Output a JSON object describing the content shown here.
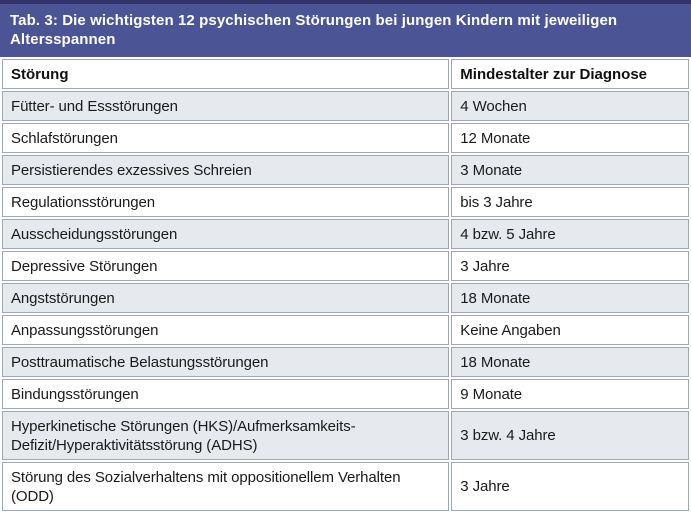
{
  "table": {
    "title": "Tab. 3: Die wichtigsten 12 psychischen Störungen bei jungen Kindern mit jeweiligen Altersspannen",
    "columns": [
      "Störung",
      "Mindestalter zur Diagnose"
    ],
    "rows": [
      {
        "disorder": "Fütter- und Essstörungen",
        "min_age": "4 Wochen"
      },
      {
        "disorder": "Schlafstörungen",
        "min_age": "12 Monate"
      },
      {
        "disorder": "Persistierendes exzessives Schreien",
        "min_age": "3 Monate"
      },
      {
        "disorder": "Regulationsstörungen",
        "min_age": "bis 3 Jahre"
      },
      {
        "disorder": "Ausscheidungsstörungen",
        "min_age": "4 bzw. 5 Jahre"
      },
      {
        "disorder": "Depressive Störungen",
        "min_age": "3 Jahre"
      },
      {
        "disorder": "Angststörungen",
        "min_age": "18 Monate"
      },
      {
        "disorder": "Anpassungsstörungen",
        "min_age": "Keine Angaben"
      },
      {
        "disorder": "Posttraumatische Belastungsstörungen",
        "min_age": "18 Monate"
      },
      {
        "disorder": "Bindungsstörungen",
        "min_age": "9 Monate"
      },
      {
        "disorder": "Hyperkinetische Störungen (HKS)/Aufmerksamkeits-Defizit/Hyperaktivitätsstörung (ADHS)",
        "min_age": "3 bzw. 4 Jahre"
      },
      {
        "disorder": "Störung des Sozialverhaltens mit oppositionellem Verhalten (ODD)",
        "min_age": "3 Jahre"
      }
    ],
    "colors": {
      "title_bg": "#4b5596",
      "title_top_bar": "#31336a",
      "title_text": "#ffffff",
      "row_alt_bg": "#e6e9ee",
      "row_bg": "#ffffff",
      "cell_border": "#9fa7b3",
      "body_text": "#1a1a1a"
    }
  }
}
